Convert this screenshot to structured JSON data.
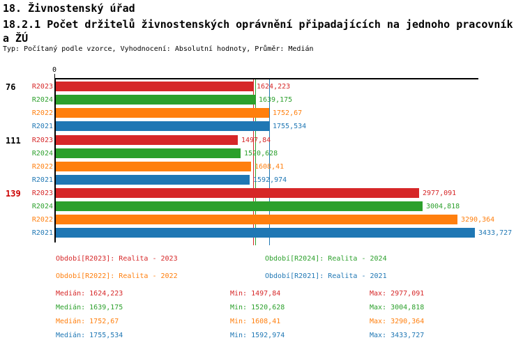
{
  "header": {
    "line1": "18. Živnostenský úřad",
    "line2": "18.2.1 Počet držitelů živnostenských oprávnění připadajících na jednoho pracovník",
    "line3": "a ŽÚ",
    "meta": "Typ: Počítaný podle vzorce, Vyhodnocení: Absolutní hodnoty, Průměr: Medián"
  },
  "colors": {
    "R2023": "#d62728",
    "R2024": "#2ca02c",
    "R2022": "#ff7f0e",
    "R2021": "#1f77b4",
    "axis": "#000000",
    "group_label": "#000000",
    "group_label_highlight": "#cc0000"
  },
  "chart_data": {
    "type": "bar",
    "orientation": "horizontal",
    "x_axis": {
      "origin_label": "0",
      "xlim": [
        0,
        3460
      ],
      "grid": false
    },
    "series_order": [
      "R2023",
      "R2024",
      "R2022",
      "R2021"
    ],
    "groups": [
      {
        "label": "76",
        "highlight": false,
        "bars": [
          {
            "series": "R2023",
            "display": "1624,223",
            "value": 1624.223
          },
          {
            "series": "R2024",
            "display": "1639,175",
            "value": 1639.175
          },
          {
            "series": "R2022",
            "display": "1752,67",
            "value": 1752.67
          },
          {
            "series": "R2021",
            "display": "1755,534",
            "value": 1755.534
          }
        ]
      },
      {
        "label": "111",
        "highlight": false,
        "bars": [
          {
            "series": "R2023",
            "display": "1497,84",
            "value": 1497.84
          },
          {
            "series": "R2024",
            "display": "1520,628",
            "value": 1520.628
          },
          {
            "series": "R2022",
            "display": "1608,41",
            "value": 1608.41
          },
          {
            "series": "R2021",
            "display": "1592,974",
            "value": 1592.974
          }
        ]
      },
      {
        "label": "139",
        "highlight": true,
        "bars": [
          {
            "series": "R2023",
            "display": "2977,091",
            "value": 2977.091
          },
          {
            "series": "R2024",
            "display": "3004,818",
            "value": 3004.818
          },
          {
            "series": "R2022",
            "display": "3290,364",
            "value": 3290.364
          },
          {
            "series": "R2021",
            "display": "3433,727",
            "value": 3433.727
          }
        ]
      }
    ],
    "median_lines": [
      {
        "series": "R2023",
        "value": 1624.223
      },
      {
        "series": "R2024",
        "value": 1639.175
      },
      {
        "series": "R2022",
        "value": 1752.67
      },
      {
        "series": "R2021",
        "value": 1755.534
      }
    ]
  },
  "legend": {
    "items": [
      {
        "series": "R2023",
        "text": "Období[R2023]: Realita - 2023"
      },
      {
        "series": "R2024",
        "text": "Období[R2024]: Realita - 2024"
      },
      {
        "series": "R2022",
        "text": "Období[R2022]: Realita - 2022"
      },
      {
        "series": "R2021",
        "text": "Období[R2021]: Realita - 2021"
      }
    ]
  },
  "stats": {
    "rows": [
      {
        "series": "R2023",
        "median": "Medián: 1624,223",
        "min": "Min: 1497,84",
        "max": "Max: 2977,091"
      },
      {
        "series": "R2024",
        "median": "Medián: 1639,175",
        "min": "Min: 1520,628",
        "max": "Max: 3004,818"
      },
      {
        "series": "R2022",
        "median": "Medián: 1752,67",
        "min": "Min: 1608,41",
        "max": "Max: 3290,364"
      },
      {
        "series": "R2021",
        "median": "Medián: 1755,534",
        "min": "Min: 1592,974",
        "max": "Max: 3433,727"
      }
    ]
  }
}
